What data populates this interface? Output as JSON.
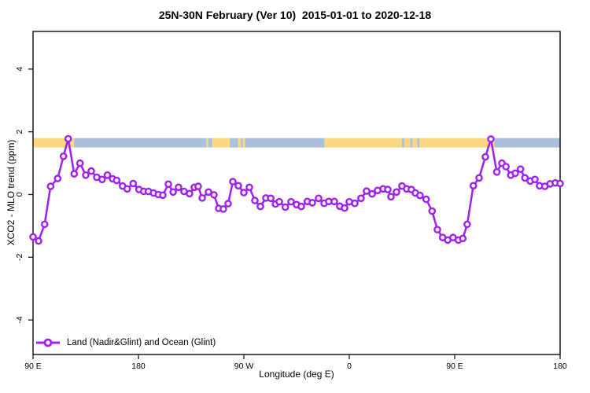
{
  "title": "25N-30N February (Ver 10)  2015-01-01 to 2020-12-18",
  "legend": {
    "label": "Land (Nadir&Glint) and Ocean (Glint)"
  },
  "colors": {
    "series": "#A020F0",
    "land_band": "#FBD87F",
    "ocean_band": "#A9BFDC",
    "axis": "#1a1a1a"
  },
  "chart_data": {
    "type": "line",
    "title": "25N-30N February (Ver 10)  2015-01-01 to 2020-12-18",
    "xlabel": "Longitude (deg E)",
    "ylabel": "XCO2 - MLO trend (ppm)",
    "xlim": [
      90,
      540
    ],
    "ylim": [
      -5.1,
      5.2
    ],
    "grid": false,
    "legend_position": "bottom-left",
    "x_ticks": [
      {
        "value": 90,
        "label": "90 E"
      },
      {
        "value": 180,
        "label": "180"
      },
      {
        "value": 270,
        "label": "90 W"
      },
      {
        "value": 360,
        "label": "0"
      },
      {
        "value": 450,
        "label": "90 E"
      },
      {
        "value": 540,
        "label": "180"
      }
    ],
    "y_ticks": [
      {
        "value": -4,
        "label": "-4"
      },
      {
        "value": -2,
        "label": "-2"
      },
      {
        "value": 0,
        "label": "0"
      },
      {
        "value": 2,
        "label": "2"
      },
      {
        "value": 4,
        "label": "4"
      }
    ],
    "surface_band": {
      "description": "land(yellow)/ocean(blue) strip along longitude",
      "y_top": 1.8,
      "y_bottom": 1.5,
      "segments": [
        {
          "from": 90,
          "to": 125,
          "type": "land"
        },
        {
          "from": 125,
          "to": 238,
          "type": "ocean"
        },
        {
          "from": 238,
          "to": 239.5,
          "type": "land"
        },
        {
          "from": 239.5,
          "to": 243,
          "type": "ocean"
        },
        {
          "from": 243,
          "to": 258,
          "type": "land"
        },
        {
          "from": 258,
          "to": 265,
          "type": "ocean"
        },
        {
          "from": 265,
          "to": 267.5,
          "type": "land"
        },
        {
          "from": 267.5,
          "to": 269,
          "type": "ocean"
        },
        {
          "from": 269,
          "to": 271,
          "type": "land"
        },
        {
          "from": 271,
          "to": 339,
          "type": "ocean"
        },
        {
          "from": 339,
          "to": 405,
          "type": "land"
        },
        {
          "from": 405,
          "to": 407,
          "type": "ocean"
        },
        {
          "from": 407,
          "to": 412,
          "type": "land"
        },
        {
          "from": 412,
          "to": 414,
          "type": "ocean"
        },
        {
          "from": 414,
          "to": 418,
          "type": "land"
        },
        {
          "from": 418,
          "to": 420,
          "type": "ocean"
        },
        {
          "from": 420,
          "to": 484,
          "type": "land"
        },
        {
          "from": 484,
          "to": 540,
          "type": "ocean"
        }
      ]
    },
    "series": [
      {
        "name": "Land (Nadir&Glint) and Ocean (Glint)",
        "color": "#A020F0",
        "marker": "open-circle",
        "points": [
          [
            90,
            -1.35
          ],
          [
            94.7,
            -1.48
          ],
          [
            99.9,
            -0.95
          ],
          [
            105,
            0.26
          ],
          [
            111,
            0.51
          ],
          [
            116,
            1.22
          ],
          [
            120,
            1.78
          ],
          [
            125.1,
            0.66
          ],
          [
            130.1,
            1.0
          ],
          [
            135,
            0.62
          ],
          [
            139.7,
            0.75
          ],
          [
            144.4,
            0.55
          ],
          [
            149,
            0.48
          ],
          [
            153.5,
            0.62
          ],
          [
            158,
            0.5
          ],
          [
            161.4,
            0.45
          ],
          [
            166.4,
            0.27
          ],
          [
            170.4,
            0.18
          ],
          [
            175.5,
            0.35
          ],
          [
            180.5,
            0.16
          ],
          [
            184.5,
            0.1
          ],
          [
            188.5,
            0.1
          ],
          [
            192.8,
            0.05
          ],
          [
            197,
            0.0
          ],
          [
            200.8,
            -0.02
          ],
          [
            205.5,
            0.33
          ],
          [
            209.6,
            0.08
          ],
          [
            214.2,
            0.23
          ],
          [
            218.9,
            0.1
          ],
          [
            223.6,
            0.03
          ],
          [
            227.7,
            0.23
          ],
          [
            231,
            0.26
          ],
          [
            234.4,
            -0.11
          ],
          [
            239.8,
            0.08
          ],
          [
            244.5,
            -0.01
          ],
          [
            248.5,
            -0.44
          ],
          [
            252.5,
            -0.46
          ],
          [
            256.6,
            -0.29
          ],
          [
            260.6,
            0.41
          ],
          [
            265.3,
            0.28
          ],
          [
            270,
            0.06
          ],
          [
            274.7,
            0.23
          ],
          [
            279.4,
            -0.19
          ],
          [
            284.1,
            -0.38
          ],
          [
            288.8,
            -0.11
          ],
          [
            293,
            -0.12
          ],
          [
            297,
            -0.3
          ],
          [
            300.2,
            -0.23
          ],
          [
            305.4,
            -0.4
          ],
          [
            310.3,
            -0.23
          ],
          [
            315,
            -0.32
          ],
          [
            319,
            -0.38
          ],
          [
            324.2,
            -0.22
          ],
          [
            328.4,
            -0.26
          ],
          [
            333.8,
            -0.12
          ],
          [
            338.5,
            -0.28
          ],
          [
            342.5,
            -0.22
          ],
          [
            347.2,
            -0.22
          ],
          [
            351.9,
            -0.37
          ],
          [
            356,
            -0.43
          ],
          [
            360,
            -0.23
          ],
          [
            364.7,
            -0.28
          ],
          [
            370,
            -0.12
          ],
          [
            374.8,
            0.11
          ],
          [
            379.5,
            0.02
          ],
          [
            384.2,
            0.13
          ],
          [
            388.9,
            0.18
          ],
          [
            392.9,
            0.16
          ],
          [
            395.6,
            -0.07
          ],
          [
            400.3,
            0.08
          ],
          [
            405,
            0.27
          ],
          [
            409,
            0.18
          ],
          [
            413,
            0.16
          ],
          [
            416.4,
            0.05
          ],
          [
            420.4,
            -0.03
          ],
          [
            425.6,
            -0.15
          ],
          [
            430.7,
            -0.53
          ],
          [
            435.2,
            -1.12
          ],
          [
            439.7,
            -1.37
          ],
          [
            444.1,
            -1.45
          ],
          [
            448.6,
            -1.37
          ],
          [
            453.1,
            -1.45
          ],
          [
            456.9,
            -1.4
          ],
          [
            460.7,
            -0.95
          ],
          [
            465.9,
            0.28
          ],
          [
            470.8,
            0.53
          ],
          [
            476.2,
            1.2
          ],
          [
            480.9,
            1.77
          ],
          [
            485.9,
            0.72
          ],
          [
            490.3,
            1.0
          ],
          [
            493.8,
            0.89
          ],
          [
            497.9,
            0.62
          ],
          [
            501.7,
            0.68
          ],
          [
            506.2,
            0.81
          ],
          [
            510,
            0.53
          ],
          [
            514.5,
            0.43
          ],
          [
            518.5,
            0.48
          ],
          [
            522.5,
            0.28
          ],
          [
            527,
            0.26
          ],
          [
            531.5,
            0.34
          ],
          [
            536,
            0.37
          ],
          [
            540,
            0.35
          ]
        ]
      }
    ]
  }
}
